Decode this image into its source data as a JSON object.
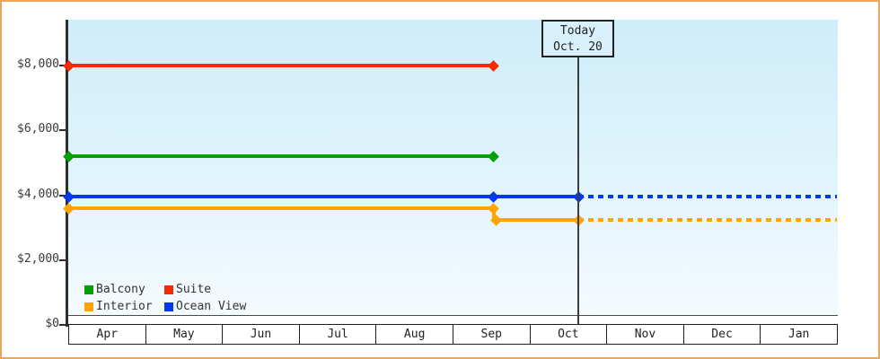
{
  "chart_data": {
    "type": "line",
    "categories": [
      "Apr",
      "May",
      "Jun",
      "Jul",
      "Aug",
      "Sep",
      "Oct",
      "Nov",
      "Dec",
      "Jan"
    ],
    "y_ticks": [
      {
        "value": 0,
        "label": "$0"
      },
      {
        "value": 2000,
        "label": "$2,000"
      },
      {
        "value": 4000,
        "label": "$4,000"
      },
      {
        "value": 6000,
        "label": "$6,000"
      },
      {
        "value": 8000,
        "label": "$8,000"
      }
    ],
    "ylim": [
      0,
      9400
    ],
    "grid": false,
    "legend_position": "bottom-left",
    "annotation": {
      "line1": "Today",
      "line2": "Oct. 20",
      "x": "today"
    },
    "series": [
      {
        "name": "Suite",
        "color": "#f22b00",
        "segments": [
          {
            "from": "start",
            "to": "sep",
            "value": 8000,
            "style": "solid"
          }
        ],
        "dots": [
          [
            "start",
            8000
          ],
          [
            "sep",
            8000
          ]
        ]
      },
      {
        "name": "Balcony",
        "color": "#02a002",
        "segments": [
          {
            "from": "start",
            "to": "sep",
            "value": 5200,
            "style": "solid"
          }
        ],
        "dots": [
          [
            "start",
            5200
          ],
          [
            "sep",
            5200
          ]
        ]
      },
      {
        "name": "Ocean View",
        "color": "#0338f0",
        "segments": [
          {
            "from": "start",
            "to": "today",
            "value": 3950,
            "style": "solid"
          },
          {
            "from": "today",
            "to": "end",
            "value": 3950,
            "style": "dashed"
          }
        ],
        "dots": [
          [
            "start",
            3950
          ],
          [
            "sep",
            3950
          ],
          [
            "today",
            3950
          ]
        ]
      },
      {
        "name": "Interior",
        "color": "#ffa400",
        "segments": [
          {
            "from": "start",
            "to": "sep",
            "value": 3600,
            "style": "solid"
          },
          {
            "style": "vstep",
            "at": "sep",
            "v1": 3600,
            "v2": 3250
          },
          {
            "from": "sep",
            "to": "today",
            "value": 3250,
            "style": "solid"
          },
          {
            "from": "today",
            "to": "end",
            "value": 3250,
            "style": "dashed"
          }
        ],
        "dots": [
          [
            "start",
            3600
          ],
          [
            "sep",
            3600
          ],
          [
            "sep2",
            3250
          ],
          [
            "today",
            3250
          ]
        ]
      }
    ]
  },
  "legend": {
    "rows": [
      [
        {
          "label": "Balcony",
          "color": "#02a002"
        },
        {
          "label": "Suite",
          "color": "#f22b00"
        }
      ],
      [
        {
          "label": "Interior",
          "color": "#ffa400"
        },
        {
          "label": "Ocean View",
          "color": "#0338f0"
        }
      ]
    ]
  }
}
